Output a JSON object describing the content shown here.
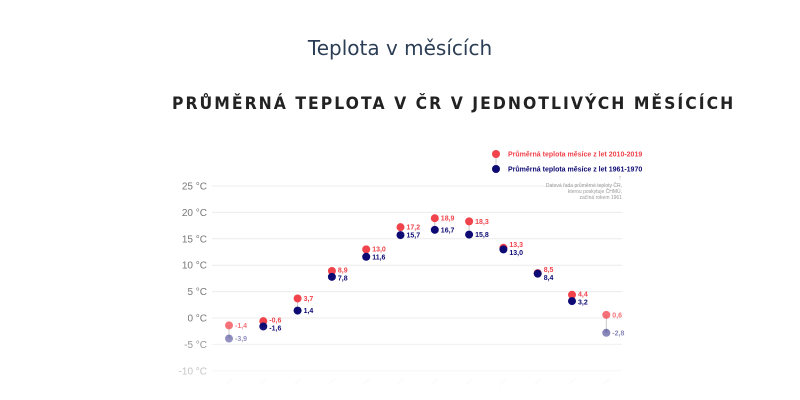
{
  "page": {
    "title": "Teplota v měsících"
  },
  "chart_data": {
    "type": "scatter",
    "title": "PRŮMĚRNÁ TEPLOTA V ČR V JEDNOTLIVÝCH MĚSÍCÍCH",
    "xlabel": "",
    "ylabel": "",
    "ylim": [
      -10,
      25
    ],
    "y_ticks": [
      "25 °C",
      "20 °C",
      "15 °C",
      "10 °C",
      "5 °C",
      "0 °C",
      "-5 °C",
      "-10 °C"
    ],
    "y_tick_values": [
      25,
      20,
      15,
      10,
      5,
      0,
      -5,
      -10
    ],
    "grid": true,
    "legend_position": "top-right",
    "categories_count": 12,
    "series": [
      {
        "name": "Průměrná teplota měsíce z let 2010-2019",
        "color": "#f0434b",
        "values": [
          -1.4,
          -0.6,
          3.7,
          8.9,
          13.0,
          17.2,
          18.9,
          18.3,
          13.3,
          8.5,
          4.4,
          0.6
        ],
        "labels": [
          "-1,4",
          "-0,6",
          "3,7",
          "8,9",
          "13,0",
          "17,2",
          "18,9",
          "18,3",
          "13,3",
          "8,5",
          "4,4",
          "0,6"
        ]
      },
      {
        "name": "Průměrná teplota měsíce z let 1961-1970",
        "color": "#0d0a73",
        "values": [
          -3.9,
          -1.6,
          1.4,
          7.8,
          11.6,
          15.7,
          16.7,
          15.8,
          13.0,
          8.4,
          3.2,
          -2.8
        ],
        "labels": [
          "-3,9",
          "-1,6",
          "1,4",
          "7,8",
          "11,6",
          "15,7",
          "16,7",
          "15,8",
          "13,0",
          "8,4",
          "3,2",
          "-2,8"
        ]
      }
    ],
    "annotation": {
      "arrow": "↑",
      "lines": [
        "Datová řada průměrné teploty ČR,",
        "kterou poskytuje ČHMÚ,",
        "začíná rokem 1961"
      ]
    }
  }
}
